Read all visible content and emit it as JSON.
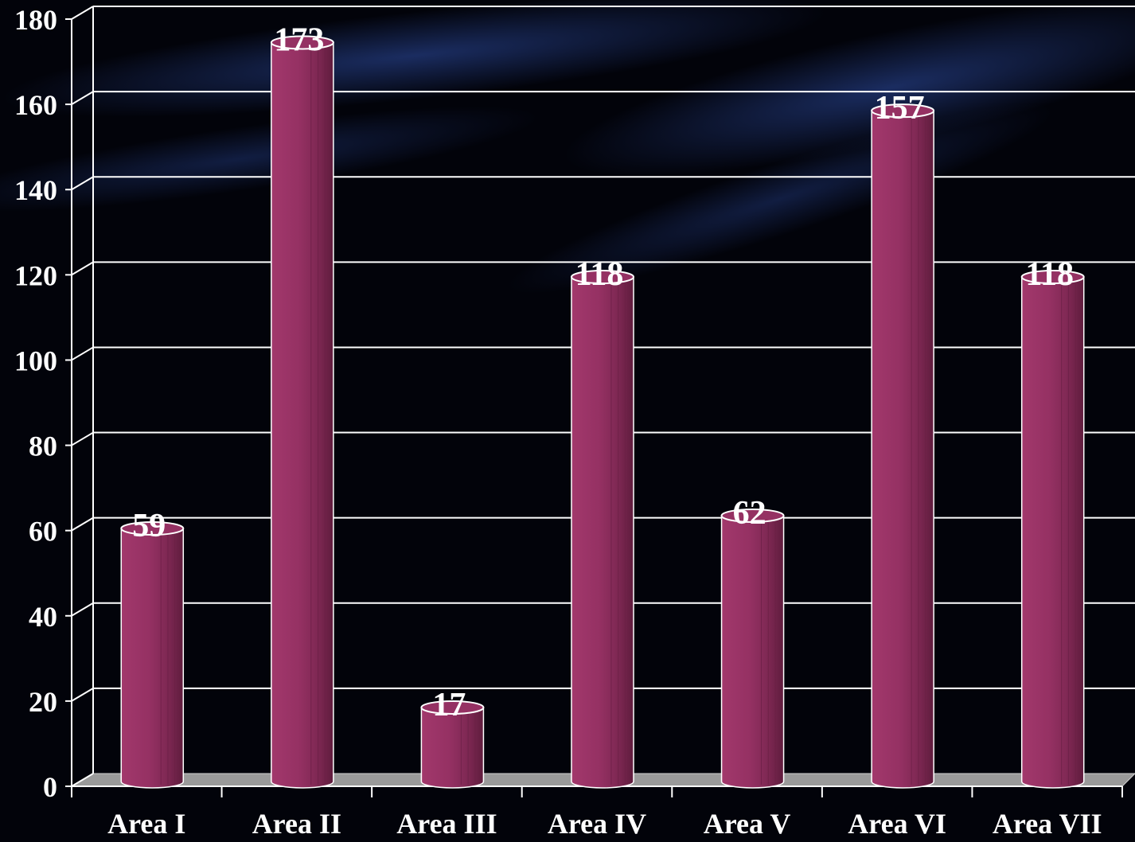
{
  "chart_data": {
    "type": "bar",
    "categories": [
      "Area I",
      "Area II",
      "Area III",
      "Area IV",
      "Area V",
      "Area VI",
      "Area VII"
    ],
    "values": [
      59,
      173,
      17,
      118,
      62,
      157,
      118
    ],
    "data_labels": [
      "59",
      "173",
      "17",
      "118",
      "62",
      "157",
      "118"
    ],
    "title": "",
    "xlabel": "",
    "ylabel": "",
    "ylim": [
      0,
      180
    ],
    "yticks": [
      0,
      20,
      40,
      60,
      80,
      100,
      120,
      140,
      160,
      180
    ],
    "ytick_labels": [
      "0",
      "20",
      "40",
      "60",
      "80",
      "100",
      "120",
      "140",
      "160",
      "180"
    ],
    "grid": true,
    "legend": "none",
    "style": "3d-cylinder",
    "colors": {
      "bar": "#953163",
      "bar_dark": "#6c2146",
      "bar_outline": "#ffffff",
      "grid": "#ffffff",
      "floor": "#9a9a9a",
      "text": "#ffffff",
      "background": "#02030a",
      "background_streak": "#1c2f63"
    }
  }
}
